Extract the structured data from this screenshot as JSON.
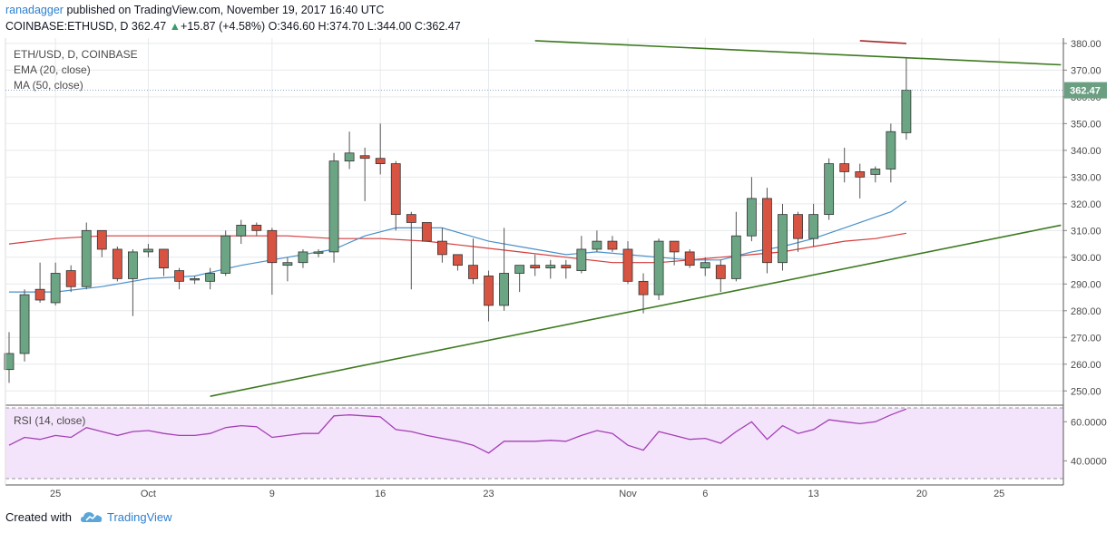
{
  "header": {
    "author": "ranadagger",
    "published_text": "published on TradingView.com, November 19, 2017 16:40 UTC",
    "symbol": "COINBASE:ETHUSD, D",
    "last": "362.47",
    "change_arrow": "▲",
    "change": "+15.87 (+4.58%)",
    "open_label": "O:",
    "open": "346.60",
    "high_label": "H:",
    "high": "374.70",
    "low_label": "L:",
    "low": "344.00",
    "close_label": "C:",
    "close": "362.47"
  },
  "legend": {
    "title": "ETH/USD, D, COINBASE",
    "ema": "EMA (20, close)",
    "ma": "MA (50, close)",
    "rsi": "RSI (14, close)"
  },
  "footer": {
    "created_with": "Created with",
    "brand": "TradingView"
  },
  "colors": {
    "up": "#6ba583",
    "down": "#d75442",
    "ema": "#4a90c8",
    "ma": "#d43b3b",
    "trend": "#3d7a1f",
    "rsi": "#a33fb5",
    "rsi_band": "#f4e4fb",
    "grid": "#e6e9ec"
  },
  "chart_data": [
    {
      "type": "candlestick",
      "title": "ETH/USD, D, COINBASE",
      "ylim": [
        245,
        382
      ],
      "y_ticks": [
        250,
        260,
        270,
        280,
        290,
        300,
        310,
        320,
        330,
        340,
        350,
        360,
        370,
        380
      ],
      "last_price_label": "362.47",
      "x_ticks": [
        {
          "date": "2017-09-25",
          "label": "25"
        },
        {
          "date": "2017-10-01",
          "label": "Oct"
        },
        {
          "date": "2017-10-09",
          "label": "9"
        },
        {
          "date": "2017-10-16",
          "label": "16"
        },
        {
          "date": "2017-10-23",
          "label": "23"
        },
        {
          "date": "2017-11-01",
          "label": "Nov"
        },
        {
          "date": "2017-11-06",
          "label": "6"
        },
        {
          "date": "2017-11-13",
          "label": "13"
        },
        {
          "date": "2017-11-20",
          "label": "20"
        },
        {
          "date": "2017-11-25",
          "label": "25"
        }
      ],
      "first_date": "2017-09-22",
      "ohlc": [
        [
          258,
          272,
          253,
          264
        ],
        [
          264,
          288,
          261,
          286
        ],
        [
          288,
          298,
          283,
          284
        ],
        [
          283,
          298,
          282,
          294
        ],
        [
          295,
          297,
          287,
          289
        ],
        [
          289,
          313,
          288,
          310
        ],
        [
          310,
          310,
          300,
          303
        ],
        [
          303,
          304,
          291,
          292
        ],
        [
          292,
          303,
          278,
          302
        ],
        [
          302,
          305,
          300,
          303
        ],
        [
          303,
          303,
          293,
          296
        ],
        [
          295,
          296,
          288,
          291
        ],
        [
          292,
          293,
          290,
          292
        ],
        [
          291,
          296,
          288,
          294
        ],
        [
          294,
          310,
          293,
          308
        ],
        [
          308,
          314,
          305,
          312
        ],
        [
          312,
          313,
          308,
          310
        ],
        [
          310,
          311,
          286,
          298
        ],
        [
          297,
          300,
          291,
          298
        ],
        [
          298,
          303,
          296,
          302
        ],
        [
          302,
          303,
          300,
          302
        ],
        [
          302,
          339,
          298,
          336
        ],
        [
          336,
          347,
          333,
          339
        ],
        [
          338,
          341,
          321,
          337
        ],
        [
          337,
          350,
          331,
          335
        ],
        [
          335,
          336,
          310,
          316
        ],
        [
          316,
          317,
          288,
          313
        ],
        [
          313,
          313,
          306,
          306
        ],
        [
          306,
          311,
          298,
          301
        ],
        [
          301,
          301,
          295,
          297
        ],
        [
          297,
          307,
          290,
          292
        ],
        [
          293,
          295,
          276,
          282
        ],
        [
          282,
          311,
          280,
          294
        ],
        [
          294,
          297,
          287,
          297
        ],
        [
          297,
          301,
          293,
          296
        ],
        [
          296,
          299,
          292,
          297
        ],
        [
          297,
          299,
          292,
          296
        ],
        [
          295,
          308,
          294,
          303
        ],
        [
          303,
          310,
          302,
          306
        ],
        [
          306,
          308,
          302,
          303
        ],
        [
          303,
          306,
          290,
          291
        ],
        [
          291,
          294,
          279,
          286
        ],
        [
          286,
          307,
          284,
          306
        ],
        [
          306,
          306,
          297,
          302
        ],
        [
          302,
          303,
          296,
          297
        ],
        [
          296,
          300,
          293,
          298
        ],
        [
          297,
          299,
          287,
          292
        ],
        [
          292,
          317,
          291,
          308
        ],
        [
          308,
          330,
          306,
          322
        ],
        [
          322,
          326,
          294,
          298
        ],
        [
          298,
          320,
          295,
          316
        ],
        [
          316,
          317,
          302,
          307
        ],
        [
          307,
          320,
          304,
          316
        ],
        [
          316,
          337,
          314,
          335
        ],
        [
          335,
          341,
          328,
          332
        ],
        [
          332,
          335,
          322,
          330
        ],
        [
          331,
          334,
          328,
          333
        ],
        [
          333,
          350,
          328,
          347
        ],
        [
          346.6,
          374.7,
          344,
          362.47
        ]
      ],
      "ema20": [
        [
          0,
          287
        ],
        [
          3,
          287
        ],
        [
          6,
          289
        ],
        [
          9,
          292
        ],
        [
          12,
          293
        ],
        [
          15,
          297
        ],
        [
          18,
          300
        ],
        [
          21,
          303
        ],
        [
          23,
          308
        ],
        [
          25,
          311
        ],
        [
          28,
          311
        ],
        [
          31,
          306
        ],
        [
          33,
          304
        ],
        [
          36,
          301
        ],
        [
          38,
          302
        ],
        [
          40,
          301
        ],
        [
          42,
          300
        ],
        [
          44,
          299
        ],
        [
          46,
          299
        ],
        [
          48,
          302
        ],
        [
          50,
          304
        ],
        [
          52,
          307
        ],
        [
          54,
          311
        ],
        [
          56,
          315
        ],
        [
          57,
          317
        ],
        [
          58,
          321
        ]
      ],
      "ma50": [
        [
          0,
          305
        ],
        [
          3,
          307
        ],
        [
          6,
          308
        ],
        [
          9,
          308
        ],
        [
          12,
          308
        ],
        [
          15,
          308
        ],
        [
          18,
          308
        ],
        [
          21,
          307
        ],
        [
          24,
          307
        ],
        [
          27,
          306
        ],
        [
          30,
          304
        ],
        [
          33,
          302
        ],
        [
          36,
          300
        ],
        [
          39,
          298
        ],
        [
          42,
          298
        ],
        [
          44,
          299
        ],
        [
          46,
          300
        ],
        [
          48,
          301
        ],
        [
          50,
          302
        ],
        [
          52,
          304
        ],
        [
          54,
          306
        ],
        [
          56,
          307
        ],
        [
          58,
          309
        ]
      ],
      "trendlines": [
        {
          "name": "resistance",
          "from": {
            "date": "2017-10-26",
            "price": 381
          },
          "to": {
            "date": "2017-11-29",
            "price": 372
          }
        },
        {
          "name": "support",
          "from": {
            "date": "2017-10-05",
            "price": 248
          },
          "to": {
            "date": "2017-11-29",
            "price": 312
          }
        },
        {
          "name": "upper-red",
          "from": {
            "date": "2017-11-16",
            "price": 381
          },
          "to": {
            "date": "2017-11-19",
            "price": 380
          }
        }
      ]
    },
    {
      "type": "line",
      "title": "RSI (14, close)",
      "ylim": [
        30,
        68
      ],
      "y_ticks": [
        40,
        60
      ],
      "band": [
        30,
        70
      ],
      "values": [
        [
          0,
          48
        ],
        [
          1,
          52
        ],
        [
          2,
          51
        ],
        [
          3,
          53
        ],
        [
          4,
          52
        ],
        [
          5,
          57
        ],
        [
          6,
          55
        ],
        [
          7,
          53
        ],
        [
          8,
          55
        ],
        [
          9,
          55.5
        ],
        [
          10,
          54
        ],
        [
          11,
          53
        ],
        [
          12,
          53
        ],
        [
          13,
          54
        ],
        [
          14,
          57
        ],
        [
          15,
          58
        ],
        [
          16,
          57.5
        ],
        [
          17,
          52
        ],
        [
          18,
          53
        ],
        [
          19,
          54
        ],
        [
          20,
          54
        ],
        [
          21,
          63
        ],
        [
          22,
          63.5
        ],
        [
          23,
          63
        ],
        [
          24,
          62.5
        ],
        [
          25,
          56
        ],
        [
          26,
          55
        ],
        [
          27,
          53
        ],
        [
          28,
          51.5
        ],
        [
          29,
          50
        ],
        [
          30,
          48
        ],
        [
          31,
          44
        ],
        [
          32,
          50
        ],
        [
          33,
          50
        ],
        [
          34,
          50
        ],
        [
          35,
          50.5
        ],
        [
          36,
          50
        ],
        [
          37,
          53
        ],
        [
          38,
          55.5
        ],
        [
          39,
          54
        ],
        [
          40,
          48
        ],
        [
          41,
          45.5
        ],
        [
          42,
          55
        ],
        [
          43,
          53
        ],
        [
          44,
          51
        ],
        [
          45,
          51.5
        ],
        [
          46,
          49
        ],
        [
          47,
          55
        ],
        [
          48,
          60
        ],
        [
          49,
          51
        ],
        [
          50,
          58
        ],
        [
          51,
          54
        ],
        [
          52,
          56
        ],
        [
          53,
          61
        ],
        [
          54,
          60
        ],
        [
          55,
          59
        ],
        [
          56,
          60
        ],
        [
          57,
          63.5
        ],
        [
          58,
          66.5
        ]
      ]
    }
  ]
}
